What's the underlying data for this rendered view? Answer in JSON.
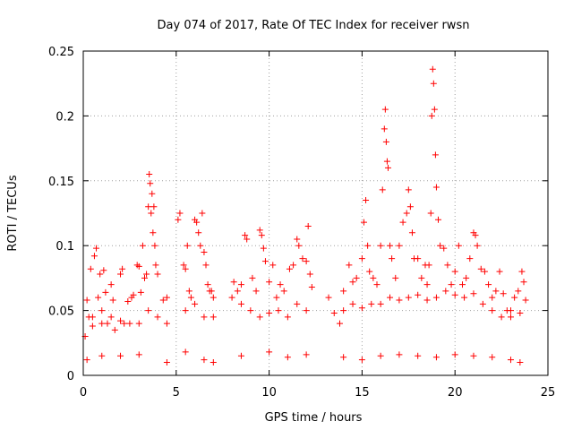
{
  "chart_data": {
    "type": "scatter",
    "title": "Day 074 of 2017, Rate Of TEC Index for receiver rwsn",
    "xlabel": "GPS time / hours",
    "ylabel": "ROTI / TECUs",
    "xlim": [
      0,
      25
    ],
    "ylim": [
      0,
      0.25
    ],
    "x_ticks": [
      "0",
      "5",
      "10",
      "15",
      "20",
      "25"
    ],
    "y_ticks": [
      "0",
      "0.05",
      "0.1",
      "0.15",
      "0.2",
      "0.25"
    ],
    "grid": true,
    "marker": "+",
    "color": "#ff0000",
    "series": [
      {
        "values": [
          [
            0.1,
            0.03
          ],
          [
            0.2,
            0.058
          ],
          [
            0.3,
            0.045
          ],
          [
            0.4,
            0.082
          ],
          [
            0.5,
            0.038
          ],
          [
            0.6,
            0.092
          ],
          [
            0.7,
            0.098
          ],
          [
            0.8,
            0.06
          ],
          [
            0.9,
            0.078
          ],
          [
            1.0,
            0.05
          ],
          [
            1.1,
            0.081
          ],
          [
            1.2,
            0.064
          ],
          [
            1.3,
            0.04
          ],
          [
            1.5,
            0.07
          ],
          [
            1.6,
            0.058
          ],
          [
            1.7,
            0.035
          ],
          [
            2.0,
            0.078
          ],
          [
            2.1,
            0.082
          ],
          [
            2.2,
            0.04
          ],
          [
            2.4,
            0.057
          ],
          [
            2.6,
            0.06
          ],
          [
            2.7,
            0.062
          ],
          [
            2.9,
            0.085
          ],
          [
            3.0,
            0.084
          ],
          [
            3.1,
            0.064
          ],
          [
            3.2,
            0.1
          ],
          [
            3.3,
            0.075
          ],
          [
            3.4,
            0.078
          ],
          [
            3.5,
            0.13
          ],
          [
            3.55,
            0.155
          ],
          [
            3.6,
            0.148
          ],
          [
            3.65,
            0.125
          ],
          [
            3.7,
            0.14
          ],
          [
            3.75,
            0.11
          ],
          [
            3.8,
            0.13
          ],
          [
            3.85,
            0.1
          ],
          [
            3.9,
            0.085
          ],
          [
            4.0,
            0.078
          ],
          [
            4.3,
            0.058
          ],
          [
            4.5,
            0.06
          ],
          [
            5.1,
            0.12
          ],
          [
            5.2,
            0.125
          ],
          [
            5.4,
            0.085
          ],
          [
            5.5,
            0.082
          ],
          [
            5.6,
            0.1
          ],
          [
            5.7,
            0.065
          ],
          [
            5.8,
            0.06
          ],
          [
            6.0,
            0.12
          ],
          [
            6.1,
            0.118
          ],
          [
            6.2,
            0.11
          ],
          [
            6.3,
            0.1
          ],
          [
            6.4,
            0.125
          ],
          [
            6.5,
            0.095
          ],
          [
            6.6,
            0.085
          ],
          [
            6.7,
            0.07
          ],
          [
            6.8,
            0.065
          ],
          [
            6.9,
            0.065
          ],
          [
            7.0,
            0.06
          ],
          [
            8.1,
            0.072
          ],
          [
            8.3,
            0.065
          ],
          [
            8.5,
            0.07
          ],
          [
            8.7,
            0.108
          ],
          [
            8.8,
            0.105
          ],
          [
            9.1,
            0.075
          ],
          [
            9.3,
            0.065
          ],
          [
            9.5,
            0.112
          ],
          [
            9.6,
            0.108
          ],
          [
            9.7,
            0.098
          ],
          [
            9.8,
            0.088
          ],
          [
            10.0,
            0.072
          ],
          [
            10.2,
            0.085
          ],
          [
            10.4,
            0.06
          ],
          [
            10.6,
            0.07
          ],
          [
            10.8,
            0.065
          ],
          [
            11.1,
            0.082
          ],
          [
            11.3,
            0.085
          ],
          [
            11.5,
            0.105
          ],
          [
            11.6,
            0.1
          ],
          [
            11.8,
            0.09
          ],
          [
            12.0,
            0.088
          ],
          [
            12.1,
            0.115
          ],
          [
            12.2,
            0.078
          ],
          [
            12.3,
            0.068
          ],
          [
            13.2,
            0.06
          ],
          [
            13.5,
            0.048
          ],
          [
            13.8,
            0.04
          ],
          [
            14.0,
            0.065
          ],
          [
            14.3,
            0.085
          ],
          [
            14.5,
            0.072
          ],
          [
            14.7,
            0.075
          ],
          [
            15.0,
            0.09
          ],
          [
            15.1,
            0.118
          ],
          [
            15.2,
            0.135
          ],
          [
            15.3,
            0.1
          ],
          [
            15.4,
            0.08
          ],
          [
            15.6,
            0.075
          ],
          [
            15.8,
            0.07
          ],
          [
            16.0,
            0.1
          ],
          [
            16.1,
            0.143
          ],
          [
            16.2,
            0.19
          ],
          [
            16.25,
            0.205
          ],
          [
            16.3,
            0.18
          ],
          [
            16.35,
            0.165
          ],
          [
            16.4,
            0.16
          ],
          [
            16.5,
            0.1
          ],
          [
            16.6,
            0.09
          ],
          [
            16.8,
            0.075
          ],
          [
            17.0,
            0.1
          ],
          [
            17.2,
            0.118
          ],
          [
            17.4,
            0.125
          ],
          [
            17.5,
            0.143
          ],
          [
            17.6,
            0.13
          ],
          [
            17.7,
            0.11
          ],
          [
            17.8,
            0.09
          ],
          [
            18.0,
            0.09
          ],
          [
            18.2,
            0.075
          ],
          [
            18.4,
            0.085
          ],
          [
            18.5,
            0.07
          ],
          [
            18.6,
            0.085
          ],
          [
            18.7,
            0.125
          ],
          [
            18.75,
            0.2
          ],
          [
            18.8,
            0.236
          ],
          [
            18.85,
            0.225
          ],
          [
            18.9,
            0.205
          ],
          [
            18.95,
            0.17
          ],
          [
            19.0,
            0.145
          ],
          [
            19.1,
            0.12
          ],
          [
            19.2,
            0.1
          ],
          [
            19.4,
            0.098
          ],
          [
            19.6,
            0.085
          ],
          [
            19.8,
            0.07
          ],
          [
            20.0,
            0.08
          ],
          [
            20.2,
            0.1
          ],
          [
            20.4,
            0.07
          ],
          [
            20.6,
            0.075
          ],
          [
            20.8,
            0.09
          ],
          [
            21.0,
            0.11
          ],
          [
            21.1,
            0.108
          ],
          [
            21.2,
            0.1
          ],
          [
            21.4,
            0.082
          ],
          [
            21.6,
            0.08
          ],
          [
            21.8,
            0.07
          ],
          [
            22.0,
            0.06
          ],
          [
            22.2,
            0.065
          ],
          [
            22.4,
            0.08
          ],
          [
            22.6,
            0.063
          ],
          [
            22.8,
            0.05
          ],
          [
            23.0,
            0.05
          ],
          [
            23.2,
            0.06
          ],
          [
            23.4,
            0.065
          ],
          [
            23.6,
            0.08
          ],
          [
            23.7,
            0.072
          ],
          [
            23.8,
            0.058
          ],
          [
            0.5,
            0.045
          ],
          [
            1.0,
            0.04
          ],
          [
            1.5,
            0.045
          ],
          [
            2.0,
            0.042
          ],
          [
            2.5,
            0.04
          ],
          [
            3.0,
            0.04
          ],
          [
            3.5,
            0.05
          ],
          [
            4.0,
            0.045
          ],
          [
            4.5,
            0.04
          ],
          [
            5.5,
            0.05
          ],
          [
            6.0,
            0.055
          ],
          [
            6.5,
            0.045
          ],
          [
            7.0,
            0.045
          ],
          [
            8.0,
            0.06
          ],
          [
            8.5,
            0.055
          ],
          [
            9.0,
            0.05
          ],
          [
            9.5,
            0.045
          ],
          [
            10.0,
            0.048
          ],
          [
            10.5,
            0.05
          ],
          [
            11.0,
            0.045
          ],
          [
            11.5,
            0.055
          ],
          [
            12.0,
            0.05
          ],
          [
            14.0,
            0.05
          ],
          [
            14.5,
            0.055
          ],
          [
            15.0,
            0.052
          ],
          [
            15.5,
            0.055
          ],
          [
            16.0,
            0.055
          ],
          [
            16.5,
            0.06
          ],
          [
            17.0,
            0.058
          ],
          [
            17.5,
            0.06
          ],
          [
            18.0,
            0.062
          ],
          [
            18.5,
            0.058
          ],
          [
            19.0,
            0.06
          ],
          [
            19.5,
            0.065
          ],
          [
            20.0,
            0.062
          ],
          [
            20.5,
            0.06
          ],
          [
            21.0,
            0.063
          ],
          [
            21.5,
            0.055
          ],
          [
            22.0,
            0.05
          ],
          [
            22.5,
            0.045
          ],
          [
            23.0,
            0.045
          ],
          [
            23.5,
            0.048
          ],
          [
            0.2,
            0.012
          ],
          [
            1.0,
            0.015
          ],
          [
            2.0,
            0.015
          ],
          [
            3.0,
            0.016
          ],
          [
            4.5,
            0.01
          ],
          [
            5.5,
            0.018
          ],
          [
            6.5,
            0.012
          ],
          [
            7.0,
            0.01
          ],
          [
            8.5,
            0.015
          ],
          [
            10.0,
            0.018
          ],
          [
            11.0,
            0.014
          ],
          [
            12.0,
            0.016
          ],
          [
            14.0,
            0.014
          ],
          [
            15.0,
            0.012
          ],
          [
            16.0,
            0.015
          ],
          [
            17.0,
            0.016
          ],
          [
            18.0,
            0.015
          ],
          [
            19.0,
            0.014
          ],
          [
            20.0,
            0.016
          ],
          [
            21.0,
            0.015
          ],
          [
            22.0,
            0.014
          ],
          [
            23.0,
            0.012
          ],
          [
            23.5,
            0.01
          ]
        ]
      }
    ]
  }
}
